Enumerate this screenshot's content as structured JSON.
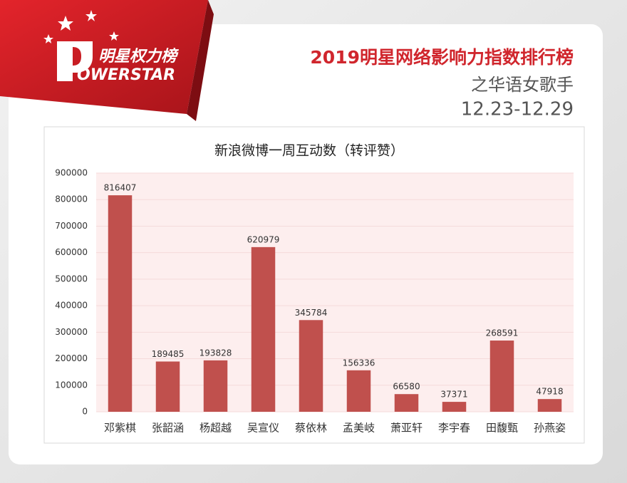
{
  "header": {
    "logo_cn": "明星权力榜",
    "logo_en": "OWERSTAR",
    "title": "2019明星网络影响力指数排行榜",
    "subtitle": "之华语女歌手",
    "date_range": "12.23-12.29"
  },
  "chart_data": {
    "type": "bar",
    "title": "新浪微博一周互动数（转评赞）",
    "categories": [
      "邓紫棋",
      "张韶涵",
      "杨超越",
      "吴宣仪",
      "蔡依林",
      "孟美岐",
      "萧亚轩",
      "李宇春",
      "田馥甄",
      "孙燕姿"
    ],
    "values": [
      816407,
      189485,
      193828,
      620979,
      345784,
      156336,
      66580,
      37371,
      268591,
      47918
    ],
    "color": "#c0504d",
    "ylim": [
      0,
      900000
    ],
    "yticks": [
      0,
      100000,
      200000,
      300000,
      400000,
      500000,
      600000,
      700000,
      800000,
      900000
    ],
    "grid": true
  }
}
